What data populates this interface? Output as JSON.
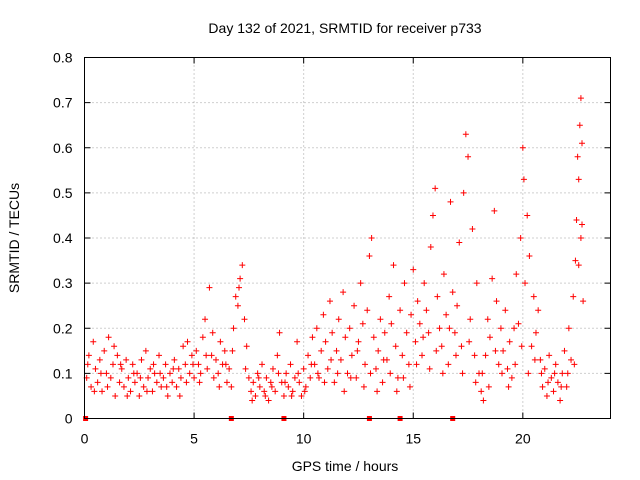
{
  "chart_data": {
    "type": "scatter",
    "title": "Day 132 of 2021, SRMTID for receiver p733",
    "xlabel": "GPS time / hours",
    "ylabel": "SRMTID / TECUs",
    "xlim": [
      0,
      24
    ],
    "ylim": [
      0,
      0.8
    ],
    "x_ticks": [
      0,
      5,
      10,
      15,
      20
    ],
    "y_ticks": [
      0,
      0.1,
      0.2,
      0.3,
      0.4,
      0.5,
      0.6,
      0.7,
      0.8
    ],
    "x_tick_labels": [
      "0",
      "5",
      "10",
      "15",
      "20"
    ],
    "y_tick_labels": [
      "0",
      "0.1",
      "0.2",
      "0.3",
      "0.4",
      "0.5",
      "0.6",
      "0.7",
      "0.8"
    ],
    "grid": true,
    "marker": "+",
    "marker_color": "#ff0000",
    "zero_markers_x": [
      0.05,
      6.7,
      9.1,
      13.0,
      14.4,
      16.8
    ],
    "series": [
      {
        "name": "SRMTID",
        "points": [
          [
            0.1,
            0.09
          ],
          [
            0.2,
            0.14
          ],
          [
            0.3,
            0.07
          ],
          [
            0.4,
            0.17
          ],
          [
            0.5,
            0.11
          ],
          [
            0.6,
            0.08
          ],
          [
            0.7,
            0.13
          ],
          [
            0.8,
            0.06
          ],
          [
            0.9,
            0.15
          ],
          [
            1.0,
            0.1
          ],
          [
            1.1,
            0.18
          ],
          [
            1.2,
            0.09
          ],
          [
            1.3,
            0.12
          ],
          [
            1.4,
            0.05
          ],
          [
            1.5,
            0.14
          ],
          [
            1.6,
            0.08
          ],
          [
            1.7,
            0.11
          ],
          [
            1.8,
            0.07
          ],
          [
            1.9,
            0.13
          ],
          [
            2.0,
            0.09
          ],
          [
            2.1,
            0.06
          ],
          [
            2.2,
            0.12
          ],
          [
            2.3,
            0.08
          ],
          [
            2.4,
            0.1
          ],
          [
            2.5,
            0.05
          ],
          [
            2.6,
            0.13
          ],
          [
            2.7,
            0.07
          ],
          [
            2.8,
            0.15
          ],
          [
            2.9,
            0.09
          ],
          [
            3.0,
            0.11
          ],
          [
            3.1,
            0.06
          ],
          [
            3.2,
            0.1
          ],
          [
            3.3,
            0.08
          ],
          [
            3.4,
            0.14
          ],
          [
            3.5,
            0.07
          ],
          [
            3.6,
            0.09
          ],
          [
            3.7,
            0.12
          ],
          [
            3.8,
            0.05
          ],
          [
            3.9,
            0.1
          ],
          [
            4.0,
            0.08
          ],
          [
            4.1,
            0.13
          ],
          [
            4.2,
            0.07
          ],
          [
            4.3,
            0.11
          ],
          [
            4.4,
            0.09
          ],
          [
            4.5,
            0.16
          ],
          [
            4.6,
            0.12
          ],
          [
            4.7,
            0.17
          ],
          [
            4.8,
            0.1
          ],
          [
            4.9,
            0.14
          ],
          [
            5.0,
            0.09
          ],
          [
            5.1,
            0.15
          ],
          [
            5.2,
            0.12
          ],
          [
            5.3,
            0.1
          ],
          [
            5.4,
            0.18
          ],
          [
            5.5,
            0.22
          ],
          [
            5.6,
            0.11
          ],
          [
            5.7,
            0.29
          ],
          [
            5.8,
            0.14
          ],
          [
            5.9,
            0.09
          ],
          [
            6.0,
            0.13
          ],
          [
            6.1,
            0.1
          ],
          [
            6.2,
            0.17
          ],
          [
            6.3,
            0.12
          ],
          [
            6.4,
            0.15
          ],
          [
            6.5,
            0.08
          ],
          [
            6.6,
            0.11
          ],
          [
            6.7,
            0.07
          ],
          [
            6.8,
            0.2
          ],
          [
            6.9,
            0.27
          ],
          [
            7.0,
            0.25
          ],
          [
            7.1,
            0.31
          ],
          [
            7.2,
            0.34
          ],
          [
            7.3,
            0.22
          ],
          [
            7.4,
            0.16
          ],
          [
            7.5,
            0.09
          ],
          [
            7.6,
            0.06
          ],
          [
            7.7,
            0.08
          ],
          [
            7.8,
            0.05
          ],
          [
            7.9,
            0.1
          ],
          [
            8.0,
            0.07
          ],
          [
            8.1,
            0.12
          ],
          [
            8.2,
            0.06
          ],
          [
            8.3,
            0.09
          ],
          [
            8.4,
            0.04
          ],
          [
            8.5,
            0.08
          ],
          [
            8.6,
            0.11
          ],
          [
            8.7,
            0.06
          ],
          [
            8.8,
            0.14
          ],
          [
            8.9,
            0.19
          ],
          [
            9.0,
            0.08
          ],
          [
            9.1,
            0.05
          ],
          [
            9.2,
            0.1
          ],
          [
            9.3,
            0.07
          ],
          [
            9.4,
            0.12
          ],
          [
            9.5,
            0.06
          ],
          [
            9.6,
            0.09
          ],
          [
            9.7,
            0.17
          ],
          [
            9.8,
            0.08
          ],
          [
            9.9,
            0.05
          ],
          [
            10.0,
            0.11
          ],
          [
            10.1,
            0.07
          ],
          [
            10.2,
            0.14
          ],
          [
            10.3,
            0.09
          ],
          [
            10.4,
            0.18
          ],
          [
            10.5,
            0.12
          ],
          [
            10.6,
            0.2
          ],
          [
            10.7,
            0.09
          ],
          [
            10.8,
            0.15
          ],
          [
            10.9,
            0.23
          ],
          [
            11.0,
            0.17
          ],
          [
            11.1,
            0.11
          ],
          [
            11.2,
            0.26
          ],
          [
            11.3,
            0.19
          ],
          [
            11.4,
            0.08
          ],
          [
            11.5,
            0.15
          ],
          [
            11.6,
            0.22
          ],
          [
            11.7,
            0.13
          ],
          [
            11.8,
            0.28
          ],
          [
            11.9,
            0.18
          ],
          [
            12.0,
            0.1
          ],
          [
            12.1,
            0.2
          ],
          [
            12.2,
            0.14
          ],
          [
            12.3,
            0.25
          ],
          [
            12.4,
            0.09
          ],
          [
            12.5,
            0.17
          ],
          [
            12.6,
            0.3
          ],
          [
            12.7,
            0.21
          ],
          [
            12.8,
            0.12
          ],
          [
            12.9,
            0.24
          ],
          [
            13.0,
            0.36
          ],
          [
            13.1,
            0.4
          ],
          [
            13.2,
            0.18
          ],
          [
            13.3,
            0.11
          ],
          [
            13.4,
            0.15
          ],
          [
            13.5,
            0.22
          ],
          [
            13.6,
            0.08
          ],
          [
            13.7,
            0.19
          ],
          [
            13.8,
            0.13
          ],
          [
            13.9,
            0.27
          ],
          [
            14.0,
            0.21
          ],
          [
            14.1,
            0.34
          ],
          [
            14.2,
            0.16
          ],
          [
            14.3,
            0.09
          ],
          [
            14.4,
            0.24
          ],
          [
            14.5,
            0.14
          ],
          [
            14.6,
            0.3
          ],
          [
            14.7,
            0.19
          ],
          [
            14.8,
            0.12
          ],
          [
            14.9,
            0.23
          ],
          [
            15.0,
            0.33
          ],
          [
            15.1,
            0.17
          ],
          [
            15.2,
            0.26
          ],
          [
            15.3,
            0.21
          ],
          [
            15.4,
            0.14
          ],
          [
            15.5,
            0.3
          ],
          [
            15.6,
            0.24
          ],
          [
            15.7,
            0.19
          ],
          [
            15.8,
            0.38
          ],
          [
            15.9,
            0.45
          ],
          [
            16.0,
            0.51
          ],
          [
            16.1,
            0.27
          ],
          [
            16.2,
            0.2
          ],
          [
            16.3,
            0.16
          ],
          [
            16.4,
            0.32
          ],
          [
            16.5,
            0.23
          ],
          [
            16.6,
            0.12
          ],
          [
            16.7,
            0.48
          ],
          [
            16.8,
            0.28
          ],
          [
            16.9,
            0.19
          ],
          [
            17.0,
            0.25
          ],
          [
            17.1,
            0.39
          ],
          [
            17.2,
            0.16
          ],
          [
            17.3,
            0.5
          ],
          [
            17.4,
            0.63
          ],
          [
            17.5,
            0.58
          ],
          [
            17.6,
            0.22
          ],
          [
            17.7,
            0.42
          ],
          [
            17.8,
            0.14
          ],
          [
            17.9,
            0.3
          ],
          [
            18.0,
            0.1
          ],
          [
            18.1,
            0.06
          ],
          [
            18.2,
            0.04
          ],
          [
            18.3,
            0.14
          ],
          [
            18.4,
            0.22
          ],
          [
            18.5,
            0.18
          ],
          [
            18.6,
            0.31
          ],
          [
            18.7,
            0.46
          ],
          [
            18.8,
            0.26
          ],
          [
            18.9,
            0.12
          ],
          [
            19.0,
            0.2
          ],
          [
            19.1,
            0.15
          ],
          [
            19.2,
            0.24
          ],
          [
            19.3,
            0.11
          ],
          [
            19.4,
            0.17
          ],
          [
            19.5,
            0.09
          ],
          [
            19.6,
            0.2
          ],
          [
            19.7,
            0.32
          ],
          [
            19.8,
            0.21
          ],
          [
            19.9,
            0.4
          ],
          [
            20.0,
            0.6
          ],
          [
            20.05,
            0.53
          ],
          [
            20.1,
            0.3
          ],
          [
            20.2,
            0.45
          ],
          [
            20.3,
            0.36
          ],
          [
            20.4,
            0.16
          ],
          [
            20.5,
            0.27
          ],
          [
            20.6,
            0.19
          ],
          [
            20.7,
            0.24
          ],
          [
            20.8,
            0.13
          ],
          [
            20.9,
            0.07
          ],
          [
            21.0,
            0.11
          ],
          [
            21.1,
            0.05
          ],
          [
            21.2,
            0.14
          ],
          [
            21.3,
            0.09
          ],
          [
            21.4,
            0.06
          ],
          [
            21.5,
            0.12
          ],
          [
            21.6,
            0.08
          ],
          [
            21.7,
            0.04
          ],
          [
            21.8,
            0.1
          ],
          [
            21.9,
            0.15
          ],
          [
            22.0,
            0.07
          ],
          [
            22.1,
            0.2
          ],
          [
            22.2,
            0.13
          ],
          [
            22.3,
            0.27
          ],
          [
            22.4,
            0.35
          ],
          [
            22.45,
            0.44
          ],
          [
            22.5,
            0.58
          ],
          [
            22.55,
            0.53
          ],
          [
            22.6,
            0.65
          ],
          [
            22.65,
            0.71
          ],
          [
            22.7,
            0.61
          ],
          [
            22.75,
            0.26
          ],
          [
            0.15,
            0.12
          ],
          [
            0.45,
            0.06
          ],
          [
            0.75,
            0.1
          ],
          [
            1.05,
            0.07
          ],
          [
            1.35,
            0.16
          ],
          [
            1.65,
            0.12
          ],
          [
            1.95,
            0.05
          ],
          [
            2.25,
            0.1
          ],
          [
            2.55,
            0.09
          ],
          [
            2.85,
            0.06
          ],
          [
            3.15,
            0.12
          ],
          [
            3.45,
            0.1
          ],
          [
            3.75,
            0.07
          ],
          [
            4.05,
            0.11
          ],
          [
            4.35,
            0.05
          ],
          [
            4.65,
            0.08
          ],
          [
            4.95,
            0.12
          ],
          [
            5.25,
            0.08
          ],
          [
            5.55,
            0.14
          ],
          [
            5.85,
            0.19
          ],
          [
            6.15,
            0.07
          ],
          [
            6.45,
            0.12
          ],
          [
            6.75,
            0.15
          ],
          [
            7.05,
            0.29
          ],
          [
            7.35,
            0.11
          ],
          [
            7.65,
            0.04
          ],
          [
            7.95,
            0.09
          ],
          [
            8.25,
            0.05
          ],
          [
            8.55,
            0.07
          ],
          [
            8.85,
            0.1
          ],
          [
            9.15,
            0.08
          ],
          [
            9.45,
            0.05
          ],
          [
            9.75,
            0.1
          ],
          [
            10.05,
            0.06
          ],
          [
            10.35,
            0.12
          ],
          [
            10.65,
            0.1
          ],
          [
            10.95,
            0.08
          ],
          [
            11.25,
            0.13
          ],
          [
            11.55,
            0.1
          ],
          [
            11.85,
            0.06
          ],
          [
            12.15,
            0.09
          ],
          [
            12.45,
            0.15
          ],
          [
            12.75,
            0.07
          ],
          [
            13.05,
            0.1
          ],
          [
            13.35,
            0.06
          ],
          [
            13.65,
            0.13
          ],
          [
            13.95,
            0.1
          ],
          [
            14.25,
            0.06
          ],
          [
            14.55,
            0.09
          ],
          [
            14.85,
            0.07
          ],
          [
            15.15,
            0.12
          ],
          [
            15.45,
            0.18
          ],
          [
            15.75,
            0.11
          ],
          [
            16.05,
            0.15
          ],
          [
            16.35,
            0.1
          ],
          [
            16.65,
            0.2
          ],
          [
            16.95,
            0.14
          ],
          [
            17.25,
            0.1
          ],
          [
            17.55,
            0.17
          ],
          [
            17.85,
            0.08
          ],
          [
            18.15,
            0.1
          ],
          [
            18.45,
            0.07
          ],
          [
            18.75,
            0.15
          ],
          [
            19.05,
            0.1
          ],
          [
            19.35,
            0.07
          ],
          [
            19.65,
            0.12
          ],
          [
            19.95,
            0.16
          ],
          [
            20.25,
            0.1
          ],
          [
            20.55,
            0.13
          ],
          [
            20.85,
            0.1
          ],
          [
            21.15,
            0.08
          ],
          [
            21.45,
            0.1
          ],
          [
            21.75,
            0.07
          ],
          [
            22.05,
            0.1
          ],
          [
            22.35,
            0.12
          ],
          [
            22.65,
            0.4
          ],
          [
            22.7,
            0.43
          ],
          [
            22.55,
            0.34
          ]
        ]
      }
    ]
  }
}
